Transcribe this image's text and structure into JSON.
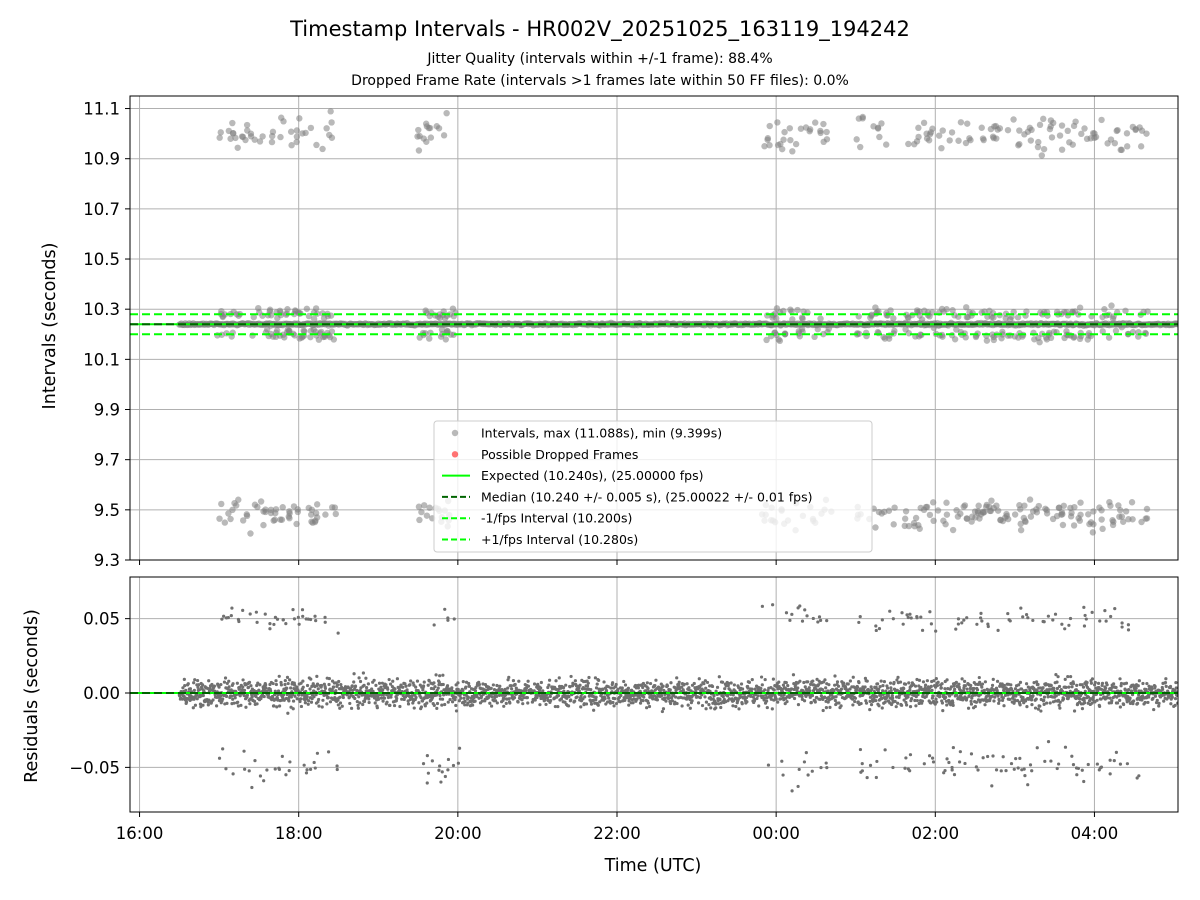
{
  "chart_data": [
    {
      "type": "scatter",
      "title": "Timestamp Intervals - HR002V_20251025_163119_194242",
      "subtitle_lines": [
        "Jitter Quality (intervals within +/-1 frame): 88.4%",
        "Dropped Frame Rate (intervals >1 frames late within 50 FF files): 0.0%"
      ],
      "ylabel": "Intervals (seconds)",
      "xlabel": "",
      "x_axis": "time (UTC, hours since 16:00)",
      "xlim": [
        -0.12,
        13.05
      ],
      "ylim": [
        9.3,
        11.15
      ],
      "yticks": [
        "9.3",
        "9.5",
        "9.7",
        "9.9",
        "10.1",
        "10.3",
        "10.5",
        "10.7",
        "10.9",
        "11.1"
      ],
      "ytick_values": [
        9.3,
        9.5,
        9.7,
        9.9,
        10.1,
        10.3,
        10.5,
        10.7,
        10.9,
        11.1
      ],
      "grid": true,
      "legend_position": "lower-center",
      "legend": [
        {
          "label": "Intervals, max (11.088s), min (9.399s)",
          "marker": "circle",
          "color": "#808080"
        },
        {
          "label": "Possible Dropped Frames",
          "marker": "circle",
          "color": "#ff0000"
        },
        {
          "label": "Expected (10.240s), (25.00000 fps)",
          "line": "solid",
          "color": "#00ff00"
        },
        {
          "label": "Median (10.240 +/- 0.005 s), (25.00022 +/- 0.01 fps)",
          "line": "dashed",
          "color": "#006400"
        },
        {
          "label": "-1/fps Interval (10.200s)",
          "line": "dashed",
          "color": "#00ff00"
        },
        {
          "label": "+1/fps Interval (10.280s)",
          "line": "dashed",
          "color": "#00ff00"
        }
      ],
      "reference_lines": {
        "expected": 10.24,
        "median": 10.24,
        "minus_one_frame": 10.2,
        "plus_one_frame": 10.28
      },
      "series": [
        {
          "name": "Intervals",
          "summary": {
            "max": 11.088,
            "min": 9.399
          },
          "clusters": [
            {
              "level": 10.24,
              "spread": 0.005,
              "x_range": [
                0.5,
                13.05
              ],
              "density": "continuous"
            },
            {
              "level": 10.28,
              "spread": 0.02,
              "x_range": [
                0.9,
                12.7
              ],
              "density": "episodic"
            },
            {
              "level": 10.2,
              "spread": 0.02,
              "x_range": [
                0.9,
                12.7
              ],
              "density": "episodic"
            },
            {
              "level": 11.0,
              "spread": 0.05,
              "x_range": [
                1.0,
                12.7
              ],
              "density": "episodic"
            },
            {
              "level": 9.48,
              "spread": 0.04,
              "x_range": [
                1.0,
                12.6
              ],
              "density": "episodic"
            }
          ],
          "episodes": [
            {
              "start": 1.0,
              "end": 2.5
            },
            {
              "start": 3.5,
              "end": 4.0
            },
            {
              "start": 7.8,
              "end": 8.7
            },
            {
              "start": 9.0,
              "end": 9.5
            },
            {
              "start": 9.6,
              "end": 12.7
            }
          ]
        },
        {
          "name": "Possible Dropped Frames",
          "count": 0
        }
      ]
    },
    {
      "type": "scatter",
      "ylabel": "Residuals (seconds)",
      "xlabel": "Time (UTC)",
      "xticks": [
        "16:00",
        "18:00",
        "20:00",
        "22:00",
        "00:00",
        "02:00",
        "04:00"
      ],
      "xtick_values": [
        0,
        2,
        4,
        6,
        8,
        10,
        12
      ],
      "xlim": [
        -0.12,
        13.05
      ],
      "ylim": [
        -0.08,
        0.078
      ],
      "yticks": [
        "−0.05",
        "0.00",
        "0.05"
      ],
      "ytick_values": [
        -0.05,
        0,
        0.05
      ],
      "grid": true,
      "reference_lines": {
        "expected": 0,
        "median": 0
      },
      "series": [
        {
          "name": "Residuals",
          "clusters": [
            {
              "level": 0.0,
              "spread": 0.006,
              "x_range": [
                0.5,
                13.05
              ],
              "density": "continuous"
            },
            {
              "level": 0.05,
              "spread": 0.006,
              "x_range": [
                1.0,
                12.6
              ],
              "density": "sparse"
            },
            {
              "level": -0.05,
              "spread": 0.008,
              "x_range": [
                1.0,
                12.6
              ],
              "density": "sparse"
            }
          ]
        }
      ]
    }
  ]
}
